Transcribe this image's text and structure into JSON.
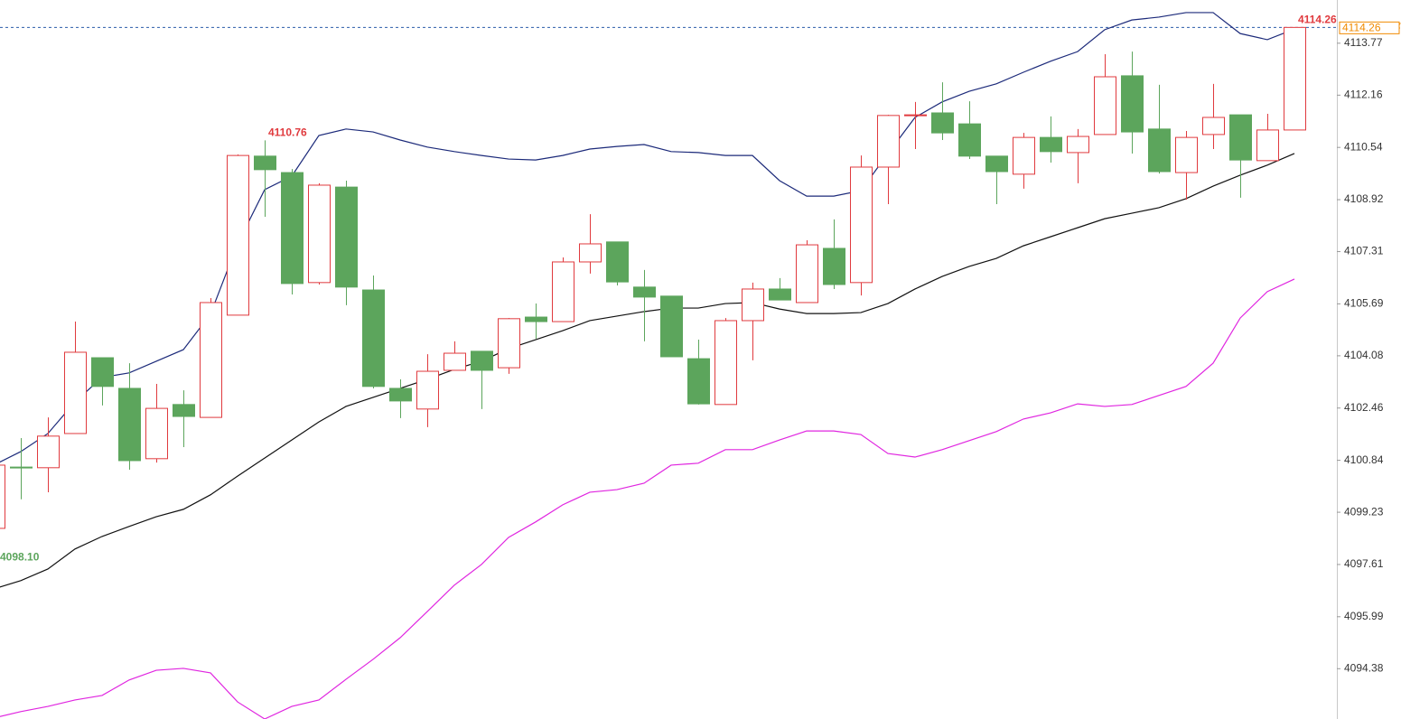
{
  "chart_data": {
    "type": "candlestick",
    "ylim": [
      4092.82,
      4115.11
    ],
    "yticks": [
      4113.77,
      4112.16,
      4110.54,
      4108.92,
      4107.31,
      4105.69,
      4104.08,
      4102.46,
      4100.84,
      4099.23,
      4097.61,
      4095.99,
      4094.38
    ],
    "up_color": "#e03a3e",
    "down_color": "#5ca55c",
    "open": [
      4098.73,
      4100.63,
      4100.61,
      4101.67,
      4104.02,
      4103.07,
      4100.89,
      4102.57,
      4102.17,
      4105.34,
      4110.27,
      4109.76,
      4106.35,
      4109.31,
      4106.12,
      4103.07,
      4102.43,
      4103.63,
      4104.22,
      4103.71,
      4105.28,
      4105.14,
      4106.99,
      4107.61,
      4106.21,
      4105.93,
      4103.99,
      4102.57,
      4105.17,
      4106.15,
      4105.73,
      4107.41,
      4106.35,
      4109.93,
      4111.53,
      4111.61,
      4111.27,
      4110.27,
      4109.71,
      4110.85,
      4110.38,
      4110.94,
      4112.76,
      4111.11,
      4109.76,
      4110.94,
      4111.55,
      4110.13,
      4111.08
    ],
    "high": [
      4100.75,
      4101.53,
      4102.17,
      4105.14,
      4104.02,
      4103.85,
      4103.21,
      4103.01,
      4105.87,
      4110.32,
      4110.76,
      4109.87,
      4109.43,
      4109.51,
      4106.57,
      4103.35,
      4104.13,
      4104.53,
      4104.22,
      4105.25,
      4105.7,
      4107.13,
      4108.47,
      4107.61,
      4106.74,
      4105.93,
      4104.58,
      4105.25,
      4106.35,
      4106.49,
      4107.66,
      4108.31,
      4110.29,
      4111.55,
      4111.95,
      4112.56,
      4111.97,
      4110.27,
      4110.99,
      4111.5,
      4111.11,
      4113.43,
      4113.51,
      4112.48,
      4111.05,
      4112.51,
      4111.55,
      4111.58,
      4114.26
    ],
    "low": [
      4098.1,
      4099.63,
      4099.85,
      4101.67,
      4102.54,
      4100.55,
      4100.77,
      4101.25,
      4102.17,
      4105.34,
      4108.39,
      4105.98,
      4106.29,
      4105.65,
      4103.07,
      4102.15,
      4101.87,
      4103.63,
      4102.43,
      4103.52,
      4104.61,
      4105.14,
      4106.63,
      4106.26,
      4104.53,
      4104.05,
      4102.57,
      4102.57,
      4103.94,
      4105.81,
      4105.73,
      4106.15,
      4105.95,
      4108.78,
      4110.49,
      4110.77,
      4110.18,
      4108.78,
      4109.26,
      4110.07,
      4109.43,
      4110.94,
      4110.35,
      4109.73,
      4108.92,
      4110.49,
      4108.98,
      4110.13,
      4111.08
    ],
    "close": [
      4100.69,
      4100.61,
      4101.59,
      4104.19,
      4103.13,
      4100.83,
      4102.45,
      4102.2,
      4105.73,
      4110.29,
      4109.85,
      4106.32,
      4109.37,
      4106.21,
      4103.13,
      4102.68,
      4103.6,
      4104.16,
      4103.63,
      4105.23,
      4105.14,
      4106.99,
      4107.55,
      4106.37,
      4105.9,
      4104.05,
      4102.59,
      4105.17,
      4106.15,
      4105.81,
      4107.52,
      4106.29,
      4109.93,
      4111.53,
      4111.55,
      4110.99,
      4110.27,
      4109.79,
      4110.85,
      4110.41,
      4110.88,
      4112.73,
      4111.02,
      4109.79,
      4110.85,
      4111.47,
      4110.15,
      4111.08,
      4114.26
    ],
    "lines": [
      {
        "color": "#1c2a7a",
        "values": [
          4100.69,
          4101.11,
          4101.67,
          4102.65,
          4103.41,
          4103.55,
          4103.91,
          4104.27,
          4105.37,
          4107.55,
          4109.23,
          4109.65,
          4110.91,
          4111.11,
          4111.02,
          4110.77,
          4110.55,
          4110.41,
          4110.29,
          4110.18,
          4110.15,
          4110.29,
          4110.49,
          4110.57,
          4110.63,
          4110.41,
          4110.38,
          4110.29,
          4110.29,
          4109.51,
          4109.03,
          4109.03,
          4109.2,
          4110.35,
          4111.47,
          4111.95,
          4112.28,
          4112.51,
          4112.87,
          4113.21,
          4113.51,
          4114.19,
          4114.49,
          4114.58,
          4114.72,
          4114.72,
          4114.07,
          4113.88,
          4114.21
        ]
      },
      {
        "color": "#111111",
        "values": [
          4096.85,
          4097.11,
          4097.47,
          4098.09,
          4098.48,
          4098.79,
          4099.09,
          4099.32,
          4099.77,
          4100.35,
          4100.91,
          4101.47,
          4102.03,
          4102.51,
          4102.79,
          4103.07,
          4103.35,
          4103.66,
          4103.91,
          4104.3,
          4104.58,
          4104.86,
          4105.17,
          4105.31,
          4105.45,
          4105.56,
          4105.56,
          4105.7,
          4105.73,
          4105.53,
          4105.39,
          4105.39,
          4105.42,
          4105.7,
          4106.15,
          4106.54,
          4106.85,
          4107.1,
          4107.49,
          4107.77,
          4108.05,
          4108.33,
          4108.5,
          4108.67,
          4108.95,
          4109.34,
          4109.68,
          4109.99,
          4110.35
        ]
      },
      {
        "color": "#e026e0",
        "values": [
          4092.85,
          4093.05,
          4093.21,
          4093.41,
          4093.55,
          4094.03,
          4094.33,
          4094.39,
          4094.25,
          4093.35,
          4092.82,
          4093.21,
          4093.41,
          4094.05,
          4094.67,
          4095.34,
          4096.15,
          4096.97,
          4097.61,
          4098.45,
          4098.93,
          4099.46,
          4099.85,
          4099.93,
          4100.13,
          4100.69,
          4100.75,
          4101.17,
          4101.17,
          4101.47,
          4101.75,
          4101.75,
          4101.64,
          4101.05,
          4100.94,
          4101.17,
          4101.45,
          4101.73,
          4102.12,
          4102.31,
          4102.59,
          4102.51,
          4102.57,
          4102.85,
          4103.13,
          4103.85,
          4105.25,
          4106.07,
          4106.46
        ]
      }
    ],
    "annotations": [
      {
        "index": 10,
        "value": 4110.76,
        "label": "4110.76",
        "color": "#e03a3e"
      },
      {
        "index": 0,
        "value": 4098.1,
        "label": "4098.10",
        "color": "#5ca55c"
      },
      {
        "index": 48,
        "value": 4114.26,
        "label": "4114.26",
        "color": "#e03a3e"
      }
    ],
    "last_price": {
      "value": 4114.26,
      "label": "4114.26",
      "color": "#f08a00",
      "line_color": "#2a5caa"
    }
  }
}
